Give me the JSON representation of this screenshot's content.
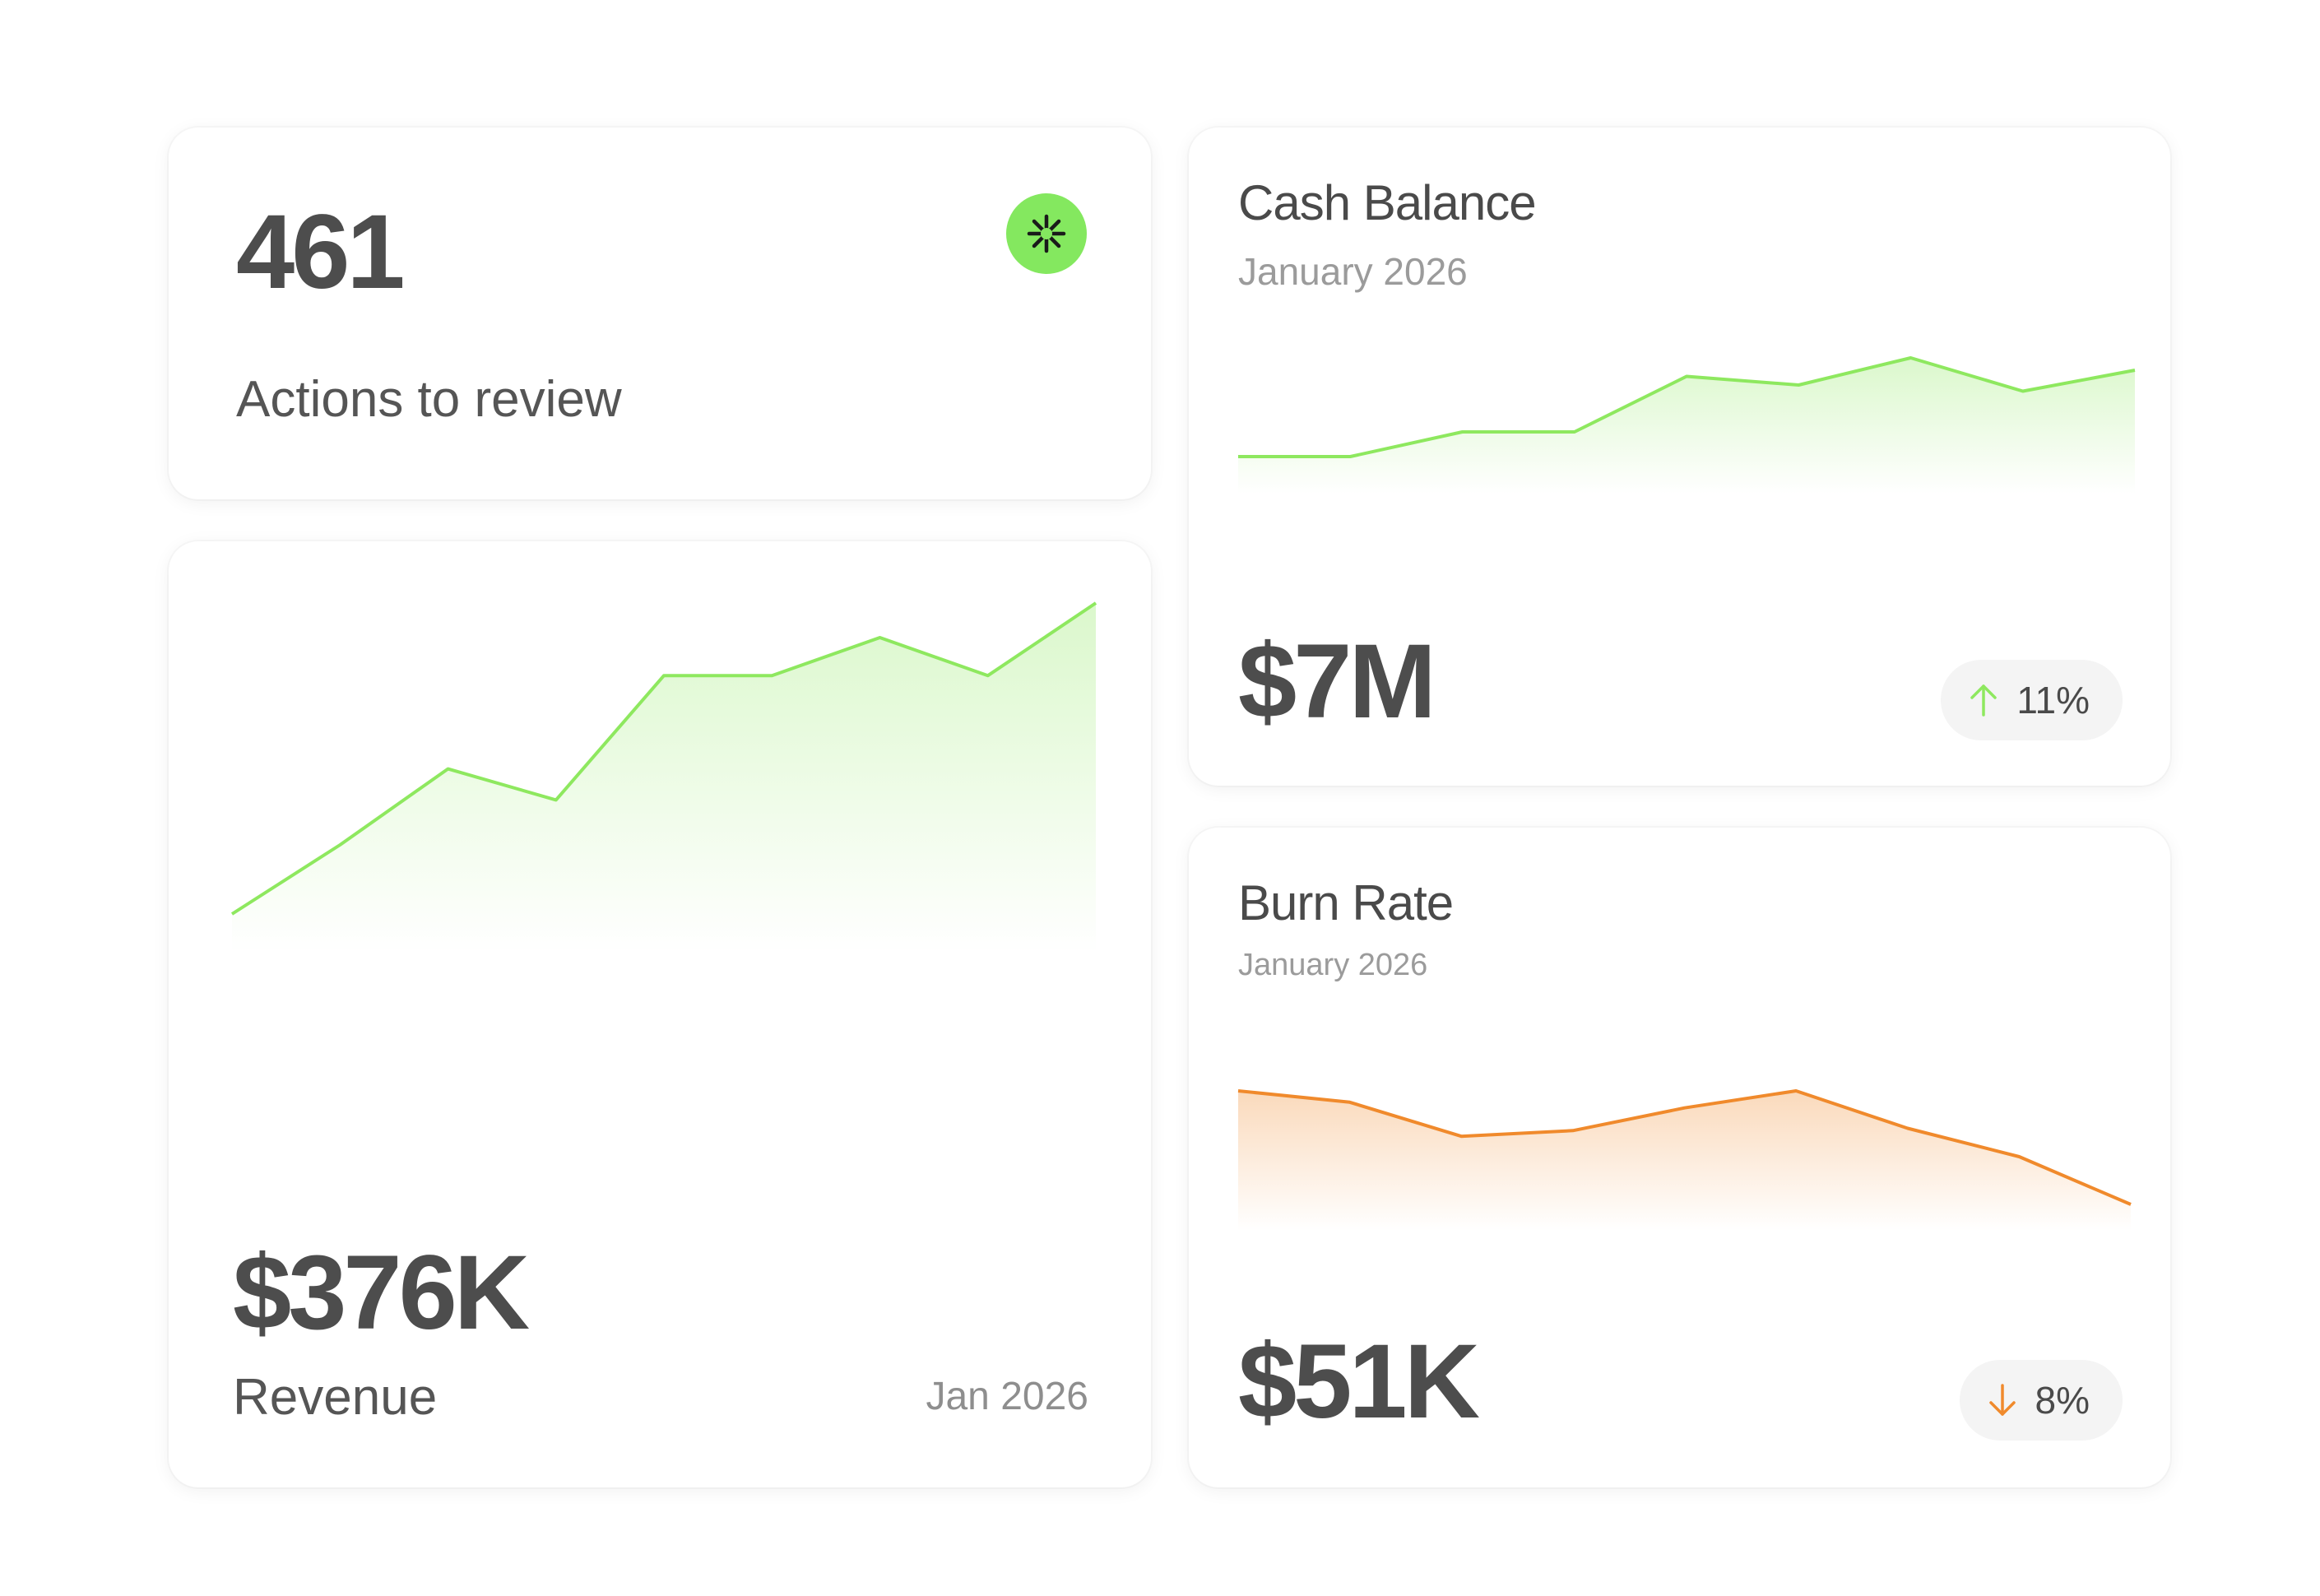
{
  "actions": {
    "count": "461",
    "label": "Actions to review",
    "badge_icon": "asterisk-icon",
    "badge_color": "#84e85f"
  },
  "revenue": {
    "value": "$376K",
    "label": "Revenue",
    "date": "Jan 2026",
    "accent": "#8ee85f"
  },
  "cash_balance": {
    "title": "Cash Balance",
    "subtitle": "January 2026",
    "value": "$7M",
    "change": "11%",
    "change_direction": "up",
    "change_icon": "arrow-up-icon",
    "accent": "#8ee85f"
  },
  "burn_rate": {
    "title": "Burn Rate",
    "subtitle": "January 2026",
    "value": "$51K",
    "change": "8%",
    "change_direction": "down",
    "change_icon": "arrow-down-icon",
    "accent": "#f08a2c"
  },
  "chart_data": [
    {
      "type": "area",
      "title": "",
      "series": [
        {
          "values": [
            10,
            30,
            52,
            43,
            79,
            79,
            90,
            79,
            100
          ]
        }
      ],
      "ylim": [
        0,
        100
      ],
      "grid": false
    },
    {
      "type": "area",
      "title": "",
      "series": [
        {
          "values": [
            10,
            10,
            30,
            30,
            75,
            68,
            90,
            63,
            80
          ]
        }
      ],
      "ylim": [
        0,
        100
      ],
      "grid": false
    },
    {
      "type": "area",
      "title": "",
      "series": [
        {
          "values": [
            100,
            90,
            60,
            65,
            85,
            100,
            67,
            42,
            0
          ]
        }
      ],
      "ylim": [
        0,
        100
      ],
      "grid": false
    }
  ]
}
